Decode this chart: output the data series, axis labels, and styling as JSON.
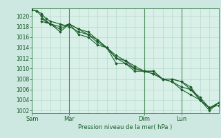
{
  "background_color": "#cce8e0",
  "plot_bg_color": "#d8f0e8",
  "grid_color": "#b8d8cc",
  "line_color": "#1a5c28",
  "marker_color": "#1a5c28",
  "xlabel": "Pression niveau de la mer( hPa )",
  "ylabel": "",
  "ylim": [
    1001.5,
    1021.5
  ],
  "yticks": [
    1002,
    1004,
    1006,
    1008,
    1010,
    1012,
    1014,
    1016,
    1018,
    1020
  ],
  "day_labels": [
    "Sam",
    "Mar",
    "Dim",
    "Lun"
  ],
  "day_positions": [
    0,
    24,
    72,
    96
  ],
  "total_hours": 120,
  "lines": [
    {
      "x": [
        0,
        3,
        6,
        9,
        12,
        18,
        24,
        30,
        36,
        42,
        48,
        54,
        60,
        66,
        72,
        78,
        84,
        90,
        96,
        102,
        108,
        114,
        120
      ],
      "y": [
        1021.2,
        1021.0,
        1020.5,
        1019.5,
        1019.0,
        1018.5,
        1018.0,
        1017.0,
        1016.5,
        1015.0,
        1014.0,
        1012.0,
        1011.0,
        1010.0,
        1009.5,
        1009.0,
        1008.0,
        1008.0,
        1007.5,
        1006.0,
        1004.0,
        1002.5,
        1003.5
      ]
    },
    {
      "x": [
        0,
        3,
        6,
        9,
        12,
        18,
        24,
        30,
        36,
        42,
        48,
        54,
        60,
        66,
        72,
        78,
        84,
        90,
        96,
        102,
        108,
        114,
        120
      ],
      "y": [
        1021.2,
        1021.0,
        1020.0,
        1019.0,
        1018.5,
        1018.0,
        1018.5,
        1017.5,
        1017.0,
        1015.5,
        1014.0,
        1012.5,
        1011.5,
        1010.5,
        1009.5,
        1009.0,
        1008.0,
        1007.5,
        1006.0,
        1005.0,
        1004.0,
        1002.0,
        1003.5
      ]
    },
    {
      "x": [
        6,
        12,
        18,
        24,
        30,
        36,
        42,
        48,
        54,
        60,
        66,
        72,
        78,
        84,
        90,
        96,
        102,
        108,
        114,
        120
      ],
      "y": [
        1019.0,
        1018.5,
        1017.5,
        1018.5,
        1017.5,
        1016.5,
        1015.5,
        1014.0,
        1012.0,
        1011.5,
        1010.0,
        1009.5,
        1009.5,
        1008.0,
        1007.5,
        1006.5,
        1006.0,
        1004.5,
        1002.5,
        1003.0
      ]
    },
    {
      "x": [
        6,
        12,
        18,
        24,
        30,
        36,
        42,
        48,
        54,
        60,
        66,
        72,
        78,
        84,
        90,
        96,
        102,
        108,
        114,
        120
      ],
      "y": [
        1019.5,
        1018.5,
        1017.0,
        1018.5,
        1016.5,
        1016.0,
        1014.5,
        1014.0,
        1011.0,
        1011.0,
        1009.5,
        1009.5,
        1009.5,
        1008.0,
        1008.0,
        1007.5,
        1006.5,
        1004.0,
        1002.5,
        1003.5
      ]
    }
  ]
}
